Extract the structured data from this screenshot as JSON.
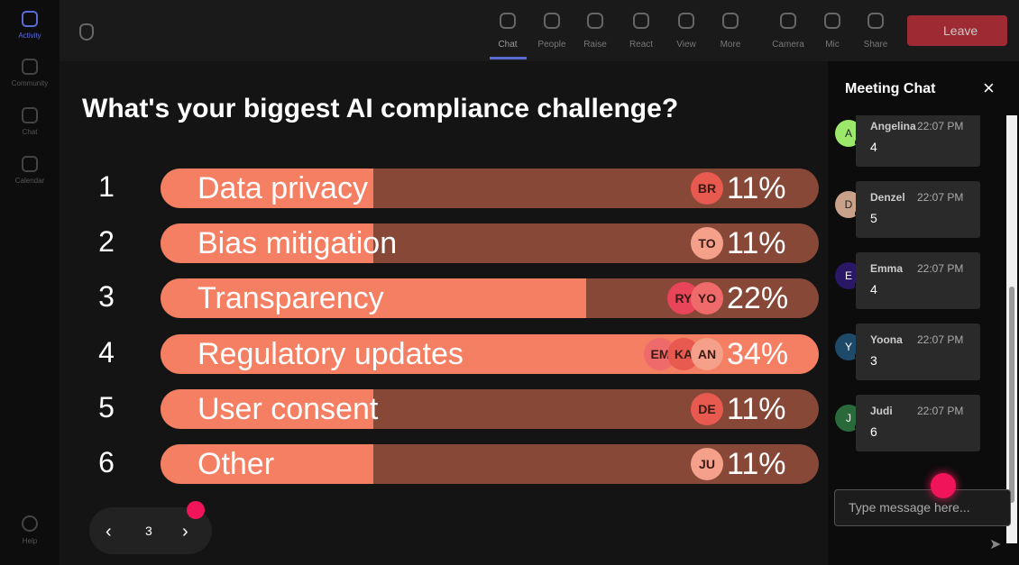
{
  "sidebar": {
    "items": [
      "Activity",
      "Community",
      "Chat",
      "Calendar"
    ],
    "help": "Help"
  },
  "toolbar": {
    "items": [
      "Chat",
      "People",
      "Raise",
      "React",
      "View",
      "More",
      "Camera",
      "Mic",
      "Share"
    ],
    "leave": "Leave"
  },
  "poll": {
    "question": "What's your biggest AI compliance challenge?",
    "options": [
      {
        "number": "1",
        "label": "Data privacy",
        "value": 11,
        "value_label": "11%",
        "voters": [
          "BR"
        ]
      },
      {
        "number": "2",
        "label": "Bias mitigation",
        "value": 11,
        "value_label": "11%",
        "voters": [
          "TO"
        ]
      },
      {
        "number": "3",
        "label": "Transparency",
        "value": 22,
        "value_label": "22%",
        "voters": [
          "RY",
          "YO"
        ]
      },
      {
        "number": "4",
        "label": "Regulatory updates",
        "value": 34,
        "value_label": "34%",
        "voters": [
          "EM",
          "KA",
          "AN"
        ]
      },
      {
        "number": "5",
        "label": "User consent",
        "value": 11,
        "value_label": "11%",
        "voters": [
          "DE"
        ]
      },
      {
        "number": "6",
        "label": "Other",
        "value": 11,
        "value_label": "11%",
        "voters": [
          "JU"
        ]
      }
    ]
  },
  "pager": {
    "page": "3"
  },
  "chat": {
    "title": "Meeting Chat",
    "messages": [
      {
        "initial": "A",
        "name": "Angelina",
        "time": "22:07 PM",
        "text": "4"
      },
      {
        "initial": "D",
        "name": "Denzel",
        "time": "22:07 PM",
        "text": "5"
      },
      {
        "initial": "E",
        "name": "Emma",
        "time": "22:07 PM",
        "text": "4"
      },
      {
        "initial": "Y",
        "name": "Yoona",
        "time": "22:07 PM",
        "text": "3"
      },
      {
        "initial": "J",
        "name": "Judi",
        "time": "22:07 PM",
        "text": "6"
      }
    ],
    "placeholder": "Type message here..."
  }
}
